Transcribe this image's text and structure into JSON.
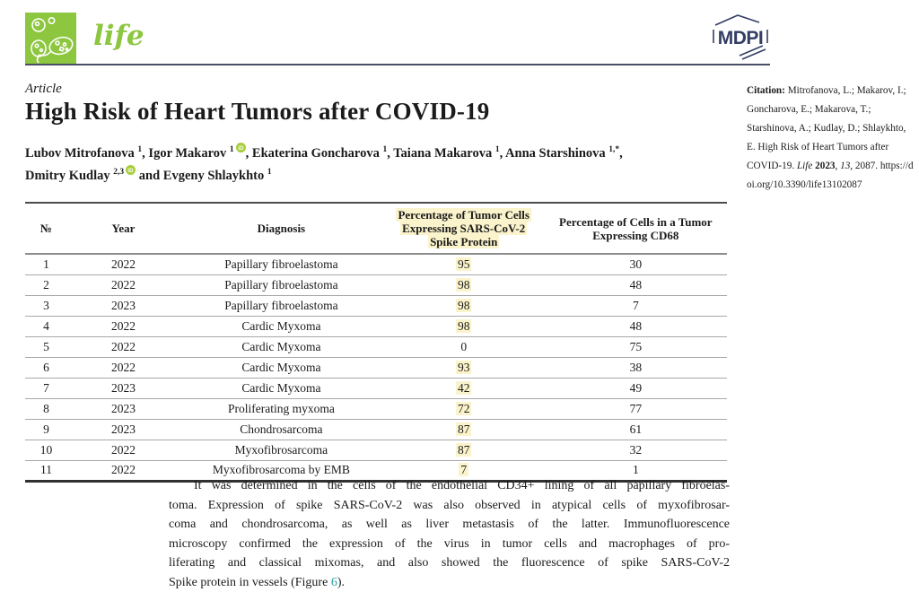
{
  "colors": {
    "journal_green": "#8DC63F",
    "mdpi_navy": "#323E64",
    "orcid_green": "#A6CE39",
    "highlight_yellow": "#FAF3CB",
    "link_teal": "#2F9E9E"
  },
  "header": {
    "journal_name": "life",
    "mdpi_label": "MDPI"
  },
  "article": {
    "kicker": "Article",
    "title": "High Risk of Heart Tumors after COVID-19",
    "authors_line1": [
      {
        "name": "Lubov Mitrofanova",
        "sup": "1",
        "orcid": false,
        "tail": ", "
      },
      {
        "name": "Igor Makarov",
        "sup": "1",
        "orcid": true,
        "tail": ", "
      },
      {
        "name": "Ekaterina Goncharova",
        "sup": "1",
        "orcid": false,
        "tail": ", "
      },
      {
        "name": "Taiana Makarova",
        "sup": "1",
        "orcid": false,
        "tail": ", "
      },
      {
        "name": "Anna Starshinova",
        "sup": "1,*",
        "orcid": false,
        "tail": ","
      }
    ],
    "authors_line2": [
      {
        "name": "Dmitry Kudlay",
        "sup": "2,3",
        "orcid": true,
        "tail": " and "
      },
      {
        "name": "Evgeny Shlaykhto",
        "sup": "1",
        "orcid": false,
        "tail": ""
      }
    ]
  },
  "citation": {
    "label": "Citation:",
    "authors_title": " Mitrofanova, L.; Makarov, I.; Goncharova, E.; Makarova, T.; Starshinova, A.; Kudlay, D.; Shlaykhto, E. High Risk of Heart Tumors after COVID-19. ",
    "journal": "Life",
    "year": " 2023",
    "sep1": ", ",
    "volume": "13",
    "pages": ", 2087. ",
    "doi": "https://doi.org/10.3390/life13102087"
  },
  "table": {
    "headers": [
      {
        "label": "№",
        "highlight": false
      },
      {
        "label": "Year",
        "highlight": false
      },
      {
        "label": "Diagnosis",
        "highlight": false
      },
      {
        "label": "Percentage of Tumor Cells Expressing SARS-CoV-2 Spike Protein",
        "highlight": true
      },
      {
        "label": "Percentage of Cells in a Tumor Expressing CD68",
        "highlight": false
      }
    ],
    "rows": [
      {
        "n": "1",
        "year": "2022",
        "diagnosis": "Papillary fibroelastoma",
        "spike": "95",
        "spike_highlight": true,
        "cd68": "30"
      },
      {
        "n": "2",
        "year": "2022",
        "diagnosis": "Papillary fibroelastoma",
        "spike": "98",
        "spike_highlight": true,
        "cd68": "48"
      },
      {
        "n": "3",
        "year": "2023",
        "diagnosis": "Papillary fibroelastoma",
        "spike": "98",
        "spike_highlight": true,
        "cd68": "7"
      },
      {
        "n": "4",
        "year": "2022",
        "diagnosis": "Cardic Myxoma",
        "spike": "98",
        "spike_highlight": true,
        "cd68": "48"
      },
      {
        "n": "5",
        "year": "2022",
        "diagnosis": "Cardic Myxoma",
        "spike": "0",
        "spike_highlight": false,
        "cd68": "75"
      },
      {
        "n": "6",
        "year": "2022",
        "diagnosis": "Cardic Myxoma",
        "spike": "93",
        "spike_highlight": true,
        "cd68": "38"
      },
      {
        "n": "7",
        "year": "2023",
        "diagnosis": "Cardic Myxoma",
        "spike": "42",
        "spike_highlight": true,
        "cd68": "49"
      },
      {
        "n": "8",
        "year": "2023",
        "diagnosis": "Proliferating myxoma",
        "spike": "72",
        "spike_highlight": true,
        "cd68": "77"
      },
      {
        "n": "9",
        "year": "2023",
        "diagnosis": "Chondrosarcoma",
        "spike": "87",
        "spike_highlight": true,
        "cd68": "61"
      },
      {
        "n": "10",
        "year": "2022",
        "diagnosis": "Myxofibrosarcoma",
        "spike": "87",
        "spike_highlight": true,
        "cd68": "32"
      },
      {
        "n": "11",
        "year": "2022",
        "diagnosis": "Myxofibrosarcoma by EMB",
        "spike": "7",
        "spike_highlight": true,
        "cd68": "1"
      }
    ]
  },
  "paragraph": {
    "lines": [
      "It was determined in the cells of the endothelial CD34+ lining of all papillary fibroelas-",
      "toma. Expression of spike SARS-CoV-2 was also observed in atypical cells of myxofibrosar-",
      "coma and chondrosarcoma, as well as liver metastasis of the latter. Immunofluorescence",
      "microscopy confirmed the expression of the virus in tumor cells and macrophages of pro-",
      "liferating and classical mixomas, and also showed the fluorescence of spike SARS-CoV-2"
    ],
    "last_line": {
      "prefix": "Spike protein in vessels (Figure ",
      "link": "6",
      "suffix": ")."
    }
  }
}
